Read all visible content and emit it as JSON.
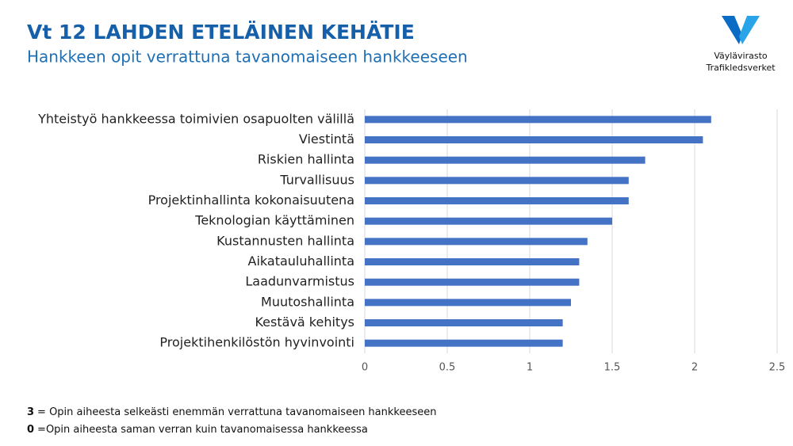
{
  "chart_data": {
    "type": "bar",
    "orientation": "horizontal",
    "title": "Vt 12 LAHDEN ETELÄINEN KEHÄTIE",
    "subtitle": "Hankkeen opit verrattuna tavanomaiseen hankkeeseen",
    "categories": [
      "Yhteistyö hankkeessa toimivien osapuolten välillä",
      "Viestintä",
      "Riskien hallinta",
      "Turvallisuus",
      "Projektinhallinta kokonaisuutena",
      "Teknologian käyttäminen",
      "Kustannusten hallinta",
      "Aikatauluhallinta",
      "Laadunvarmistus",
      "Muutoshallinta",
      "Kestävä kehitys",
      "Projektihenkilöstön hyvinvointi"
    ],
    "values": [
      2.1,
      2.05,
      1.7,
      1.6,
      1.6,
      1.5,
      1.35,
      1.3,
      1.3,
      1.25,
      1.2,
      1.2
    ],
    "color": "#4472c4",
    "xlim": [
      0,
      2.5
    ],
    "xticks": [
      0,
      0.5,
      1,
      1.5,
      2,
      2.5
    ],
    "grid": true
  },
  "notes": [
    {
      "key": "3",
      "text": "= Opin aiheesta selkeästi enemmän verrattuna tavanomaiseen hankkeeseen"
    },
    {
      "key": "0",
      "text": "=Opin aiheesta saman verran kuin tavanomaisessa hankkeessa"
    }
  ],
  "logo": {
    "line1": "Väylävirasto",
    "line2": "Trafikledsverket"
  }
}
